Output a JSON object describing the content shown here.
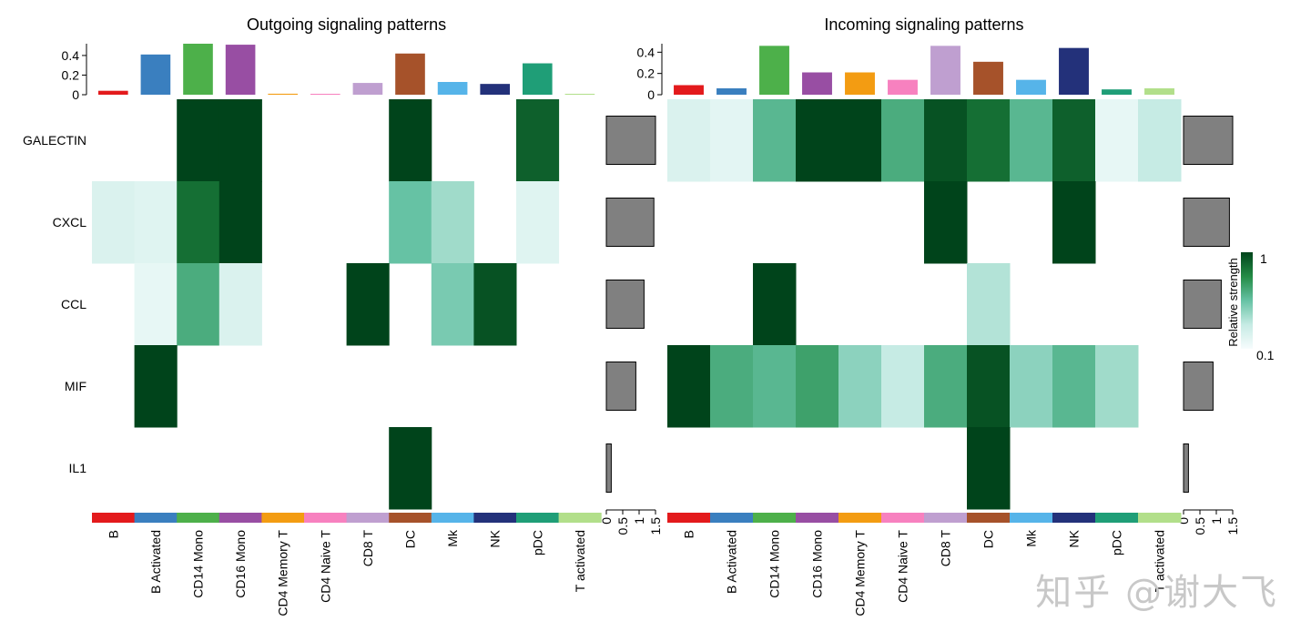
{
  "watermark": "知乎 @谢大飞",
  "chart_data": [
    {
      "type": "heatmap",
      "title": "Outgoing signaling patterns",
      "rows": [
        "GALECTIN",
        "CXCL",
        "CCL",
        "MIF",
        "IL1"
      ],
      "columns": [
        "B",
        "B Activated",
        "CD14 Mono",
        "CD16 Mono",
        "CD4 Memory T",
        "CD4 Naive T",
        "CD8 T",
        "DC",
        "Mk",
        "NK",
        "pDC",
        "T activated"
      ],
      "column_colors": [
        "#e31a1c",
        "#3a7fbf",
        "#4db04a",
        "#984ea3",
        "#f39c12",
        "#f781bf",
        "#bf9fd0",
        "#a6522a",
        "#56b4e9",
        "#23317a",
        "#1f9e77",
        "#b2df8a"
      ],
      "values": [
        [
          0,
          0,
          1,
          1,
          0,
          0,
          0,
          1,
          0,
          0,
          0.9,
          0
        ],
        [
          0.15,
          0.12,
          0.85,
          1,
          0,
          0,
          0,
          0.5,
          0.35,
          0,
          0.12,
          0
        ],
        [
          0,
          0.08,
          0.6,
          0.15,
          0,
          0,
          1,
          0,
          0.45,
          0.95,
          0,
          0
        ],
        [
          0,
          1,
          0,
          0,
          0,
          0,
          0,
          0,
          0,
          0,
          0,
          0
        ],
        [
          0,
          0,
          0,
          0,
          0,
          0,
          0,
          1,
          0,
          0,
          0,
          0
        ]
      ],
      "column_totals": [
        0.04,
        0.41,
        0.52,
        0.51,
        0.01,
        0.005,
        0.12,
        0.42,
        0.13,
        0.11,
        0.32,
        0.005
      ],
      "top_axis_ticks": [
        "0",
        "0.2",
        "0.4"
      ],
      "top_axis_max": 0.52,
      "row_totals": [
        1.5,
        1.45,
        1.15,
        0.9,
        0.15
      ],
      "right_axis_ticks": [
        "0",
        "0.5",
        "1",
        "1.5"
      ],
      "right_axis_max": 1.5
    },
    {
      "type": "heatmap",
      "title": "Incoming signaling patterns",
      "rows": [
        "GALECTIN",
        "CXCL",
        "CCL",
        "MIF",
        "IL1"
      ],
      "columns": [
        "B",
        "B Activated",
        "CD14 Mono",
        "CD16 Mono",
        "CD4 Memory T",
        "CD4 Naive T",
        "CD8 T",
        "DC",
        "Mk",
        "NK",
        "pDC",
        "T activated"
      ],
      "column_colors": [
        "#e31a1c",
        "#3a7fbf",
        "#4db04a",
        "#984ea3",
        "#f39c12",
        "#f781bf",
        "#bf9fd0",
        "#a6522a",
        "#56b4e9",
        "#23317a",
        "#1f9e77",
        "#b2df8a"
      ],
      "values": [
        [
          0.15,
          0.1,
          0.55,
          1,
          1,
          0.6,
          0.95,
          0.85,
          0.55,
          0.9,
          0.08,
          0.25
        ],
        [
          0,
          0,
          0,
          0,
          0,
          0,
          1,
          0,
          0,
          1,
          0,
          0
        ],
        [
          0,
          0,
          1,
          0,
          0,
          0,
          0,
          0.3,
          0,
          0,
          0,
          0
        ],
        [
          1,
          0.6,
          0.55,
          0.65,
          0.4,
          0.25,
          0.6,
          0.95,
          0.4,
          0.55,
          0.35,
          0
        ],
        [
          0,
          0,
          0,
          0,
          0,
          0,
          0,
          1,
          0,
          0,
          0,
          0
        ]
      ],
      "column_totals": [
        0.09,
        0.06,
        0.46,
        0.21,
        0.21,
        0.14,
        0.46,
        0.31,
        0.14,
        0.44,
        0.05,
        0.06
      ],
      "top_axis_ticks": [
        "0",
        "0.2",
        "0.4"
      ],
      "top_axis_max": 0.48,
      "row_totals": [
        1.5,
        1.4,
        1.15,
        0.9,
        0.15
      ],
      "right_axis_ticks": [
        "0",
        "0.5",
        "1",
        "1.5"
      ],
      "right_axis_max": 1.5
    }
  ],
  "legend": {
    "title": "Relative strength",
    "max_label": "1",
    "min_label": "0.1",
    "colors": [
      "#f7fcfd",
      "#c6ebe4",
      "#66c2a4",
      "#238b45",
      "#00441b"
    ]
  }
}
